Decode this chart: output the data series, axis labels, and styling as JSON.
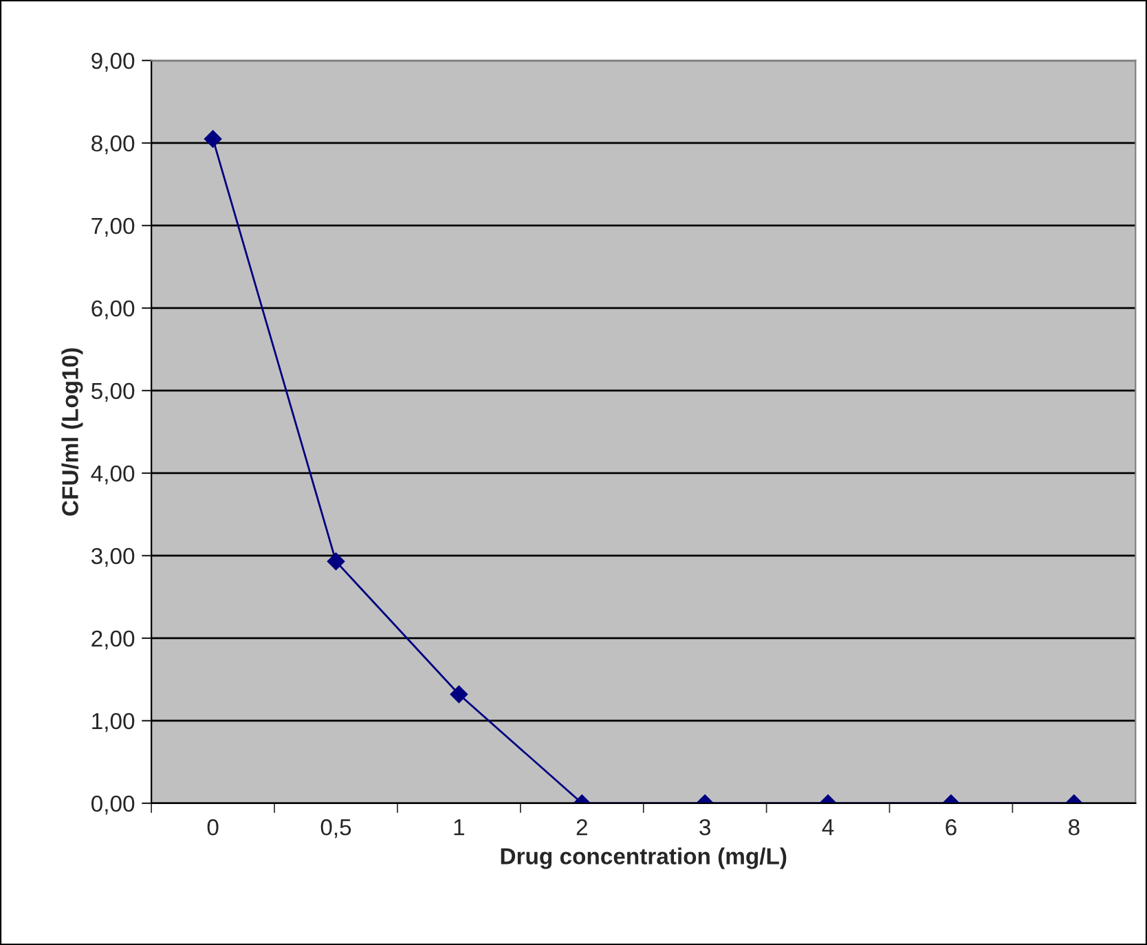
{
  "chart_data": {
    "type": "line",
    "xlabel": "Drug concentration (mg/L)",
    "ylabel": "CFU/ml (Log10)",
    "categories": [
      "0",
      "0,5",
      "1",
      "2",
      "3",
      "4",
      "6",
      "8"
    ],
    "series": [
      {
        "color": "#000080",
        "values": [
          8.05,
          2.93,
          1.32,
          0,
          0,
          0,
          0,
          0
        ]
      }
    ],
    "ylim": [
      0,
      9
    ],
    "yticks": [
      {
        "value": 0,
        "label": "0,00"
      },
      {
        "value": 1,
        "label": "1,00"
      },
      {
        "value": 2,
        "label": "2,00"
      },
      {
        "value": 3,
        "label": "3,00"
      },
      {
        "value": 4,
        "label": "4,00"
      },
      {
        "value": 5,
        "label": "5,00"
      },
      {
        "value": 6,
        "label": "6,00"
      },
      {
        "value": 7,
        "label": "7,00"
      },
      {
        "value": 8,
        "label": "8,00"
      },
      {
        "value": 9,
        "label": "9,00"
      }
    ],
    "grid": "y",
    "marker": "diamond",
    "line_style": "solid",
    "legend": false
  }
}
